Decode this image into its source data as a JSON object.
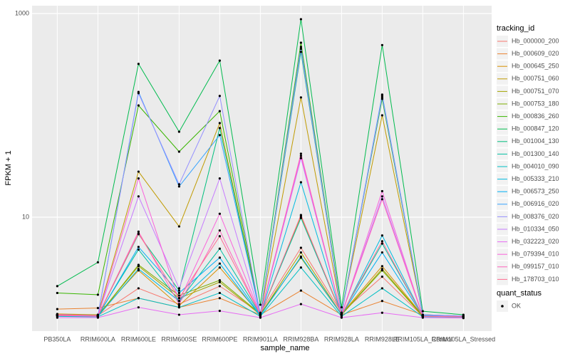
{
  "chart_data": {
    "type": "line",
    "x_label": "sample_name",
    "y_label": "FPKM + 1",
    "legend_title": "tracking_id",
    "point_legend_title": "quant_status",
    "point_legend": [
      "OK"
    ],
    "point_color": "#000000",
    "log_y": true,
    "grid": true,
    "legend_position": "right",
    "ylim": [
      0.76,
      1194
    ],
    "yticks": [
      10,
      1000
    ],
    "categories": [
      "PB350LA",
      "RRIM600LA",
      "RRIM600LE",
      "RRIM600SE",
      "RRIM600PE",
      "RRIM901LA",
      "RRIM928BA",
      "RRIM928LA",
      "RRIM928LE",
      "RRIM105LA_Control",
      "RRIM105LA_Stressed"
    ],
    "series": [
      {
        "name": "Hb_000000_200",
        "color": "#F8766D",
        "values": [
          1.1,
          1.08,
          2.0,
          1.4,
          2.1,
          1.15,
          5.0,
          1.15,
          2.6,
          1.06,
          1.05
        ]
      },
      {
        "name": "Hb_000609_020",
        "color": "#EA8331",
        "values": [
          1.25,
          1.28,
          1.6,
          1.3,
          1.6,
          1.1,
          1.9,
          1.1,
          1.5,
          1.1,
          1.05
        ]
      },
      {
        "name": "Hb_000645_250",
        "color": "#D89000",
        "values": [
          1.12,
          1.1,
          3.0,
          1.35,
          3.2,
          1.1,
          10.2,
          1.12,
          3.3,
          1.08,
          1.05
        ]
      },
      {
        "name": "Hb_000751_060",
        "color": "#C09B00",
        "values": [
          1.1,
          1.1,
          28,
          8.1,
          84,
          1.1,
          150,
          1.15,
          100,
          1.1,
          1.06
        ]
      },
      {
        "name": "Hb_000751_070",
        "color": "#A3A500",
        "values": [
          1.1,
          1.08,
          3.3,
          1.6,
          2.3,
          1.1,
          4.5,
          1.1,
          3.1,
          1.07,
          1.05
        ]
      },
      {
        "name": "Hb_000753_180",
        "color": "#7CAE00",
        "values": [
          1.08,
          1.07,
          3.4,
          1.7,
          2.4,
          1.12,
          4.0,
          1.1,
          3.0,
          1.06,
          1.04
        ]
      },
      {
        "name": "Hb_000836_260",
        "color": "#39B600",
        "values": [
          1.8,
          1.73,
          125,
          44,
          110,
          1.12,
          517,
          1.15,
          145,
          1.1,
          1.07
        ]
      },
      {
        "name": "Hb_000847_120",
        "color": "#00BB4E",
        "values": [
          2.1,
          3.6,
          320,
          69,
          345,
          1.38,
          880,
          1.3,
          490,
          1.19,
          1.1
        ]
      },
      {
        "name": "Hb_001004_130",
        "color": "#00BF7D",
        "values": [
          1.1,
          1.07,
          6.8,
          1.9,
          75,
          1.1,
          420,
          1.12,
          150,
          1.08,
          1.06
        ]
      },
      {
        "name": "Hb_001300_140",
        "color": "#00C1A3",
        "values": [
          1.1,
          1.08,
          4.8,
          1.5,
          4.9,
          1.1,
          9.8,
          1.1,
          5.5,
          1.07,
          1.05
        ]
      },
      {
        "name": "Hb_004010_090",
        "color": "#00BFC4",
        "values": [
          1.06,
          1.05,
          1.6,
          1.3,
          1.8,
          1.06,
          3.2,
          1.06,
          2.0,
          1.05,
          1.04
        ]
      },
      {
        "name": "Hb_005333_210",
        "color": "#00BAE0",
        "values": [
          1.07,
          1.06,
          3.1,
          1.5,
          3.5,
          1.07,
          22,
          1.08,
          6.6,
          1.06,
          1.05
        ]
      },
      {
        "name": "Hb_006573_250",
        "color": "#00B0F6",
        "values": [
          1.08,
          1.06,
          5.1,
          1.8,
          4.0,
          1.08,
          4.1,
          1.1,
          4.5,
          1.07,
          1.05
        ]
      },
      {
        "name": "Hb_006916_020",
        "color": "#35A2FF",
        "values": [
          1.1,
          1.07,
          170,
          20,
          64,
          1.1,
          470,
          1.12,
          160,
          1.1,
          1.06
        ]
      },
      {
        "name": "Hb_008376_020",
        "color": "#9590FF",
        "values": [
          1.1,
          1.08,
          165,
          21,
          155,
          1.1,
          450,
          1.1,
          155,
          1.1,
          1.07
        ]
      },
      {
        "name": "Hb_010334_050",
        "color": "#C77CFF",
        "values": [
          1.1,
          1.08,
          16,
          2.0,
          24,
          1.08,
          38,
          1.1,
          16,
          1.07,
          1.06
        ]
      },
      {
        "name": "Hb_032223_020",
        "color": "#E76BF3",
        "values": [
          1.03,
          1.03,
          1.3,
          1.1,
          1.2,
          1.03,
          1.4,
          1.03,
          1.15,
          1.03,
          1.02
        ]
      },
      {
        "name": "Hb_079394_010",
        "color": "#FA62DB",
        "values": [
          1.08,
          1.06,
          24,
          1.5,
          10.8,
          1.1,
          40,
          1.1,
          18,
          1.06,
          1.05
        ]
      },
      {
        "name": "Hb_099157_010",
        "color": "#FF62BC",
        "values": [
          1.1,
          1.07,
          7.2,
          1.4,
          7.4,
          1.1,
          42,
          1.1,
          15,
          1.06,
          1.05
        ]
      },
      {
        "name": "Hb_178703_010",
        "color": "#FF6C91",
        "values": [
          1.08,
          1.07,
          6.9,
          1.6,
          6.5,
          1.1,
          10.5,
          1.1,
          5.8,
          1.06,
          1.05
        ]
      }
    ]
  }
}
